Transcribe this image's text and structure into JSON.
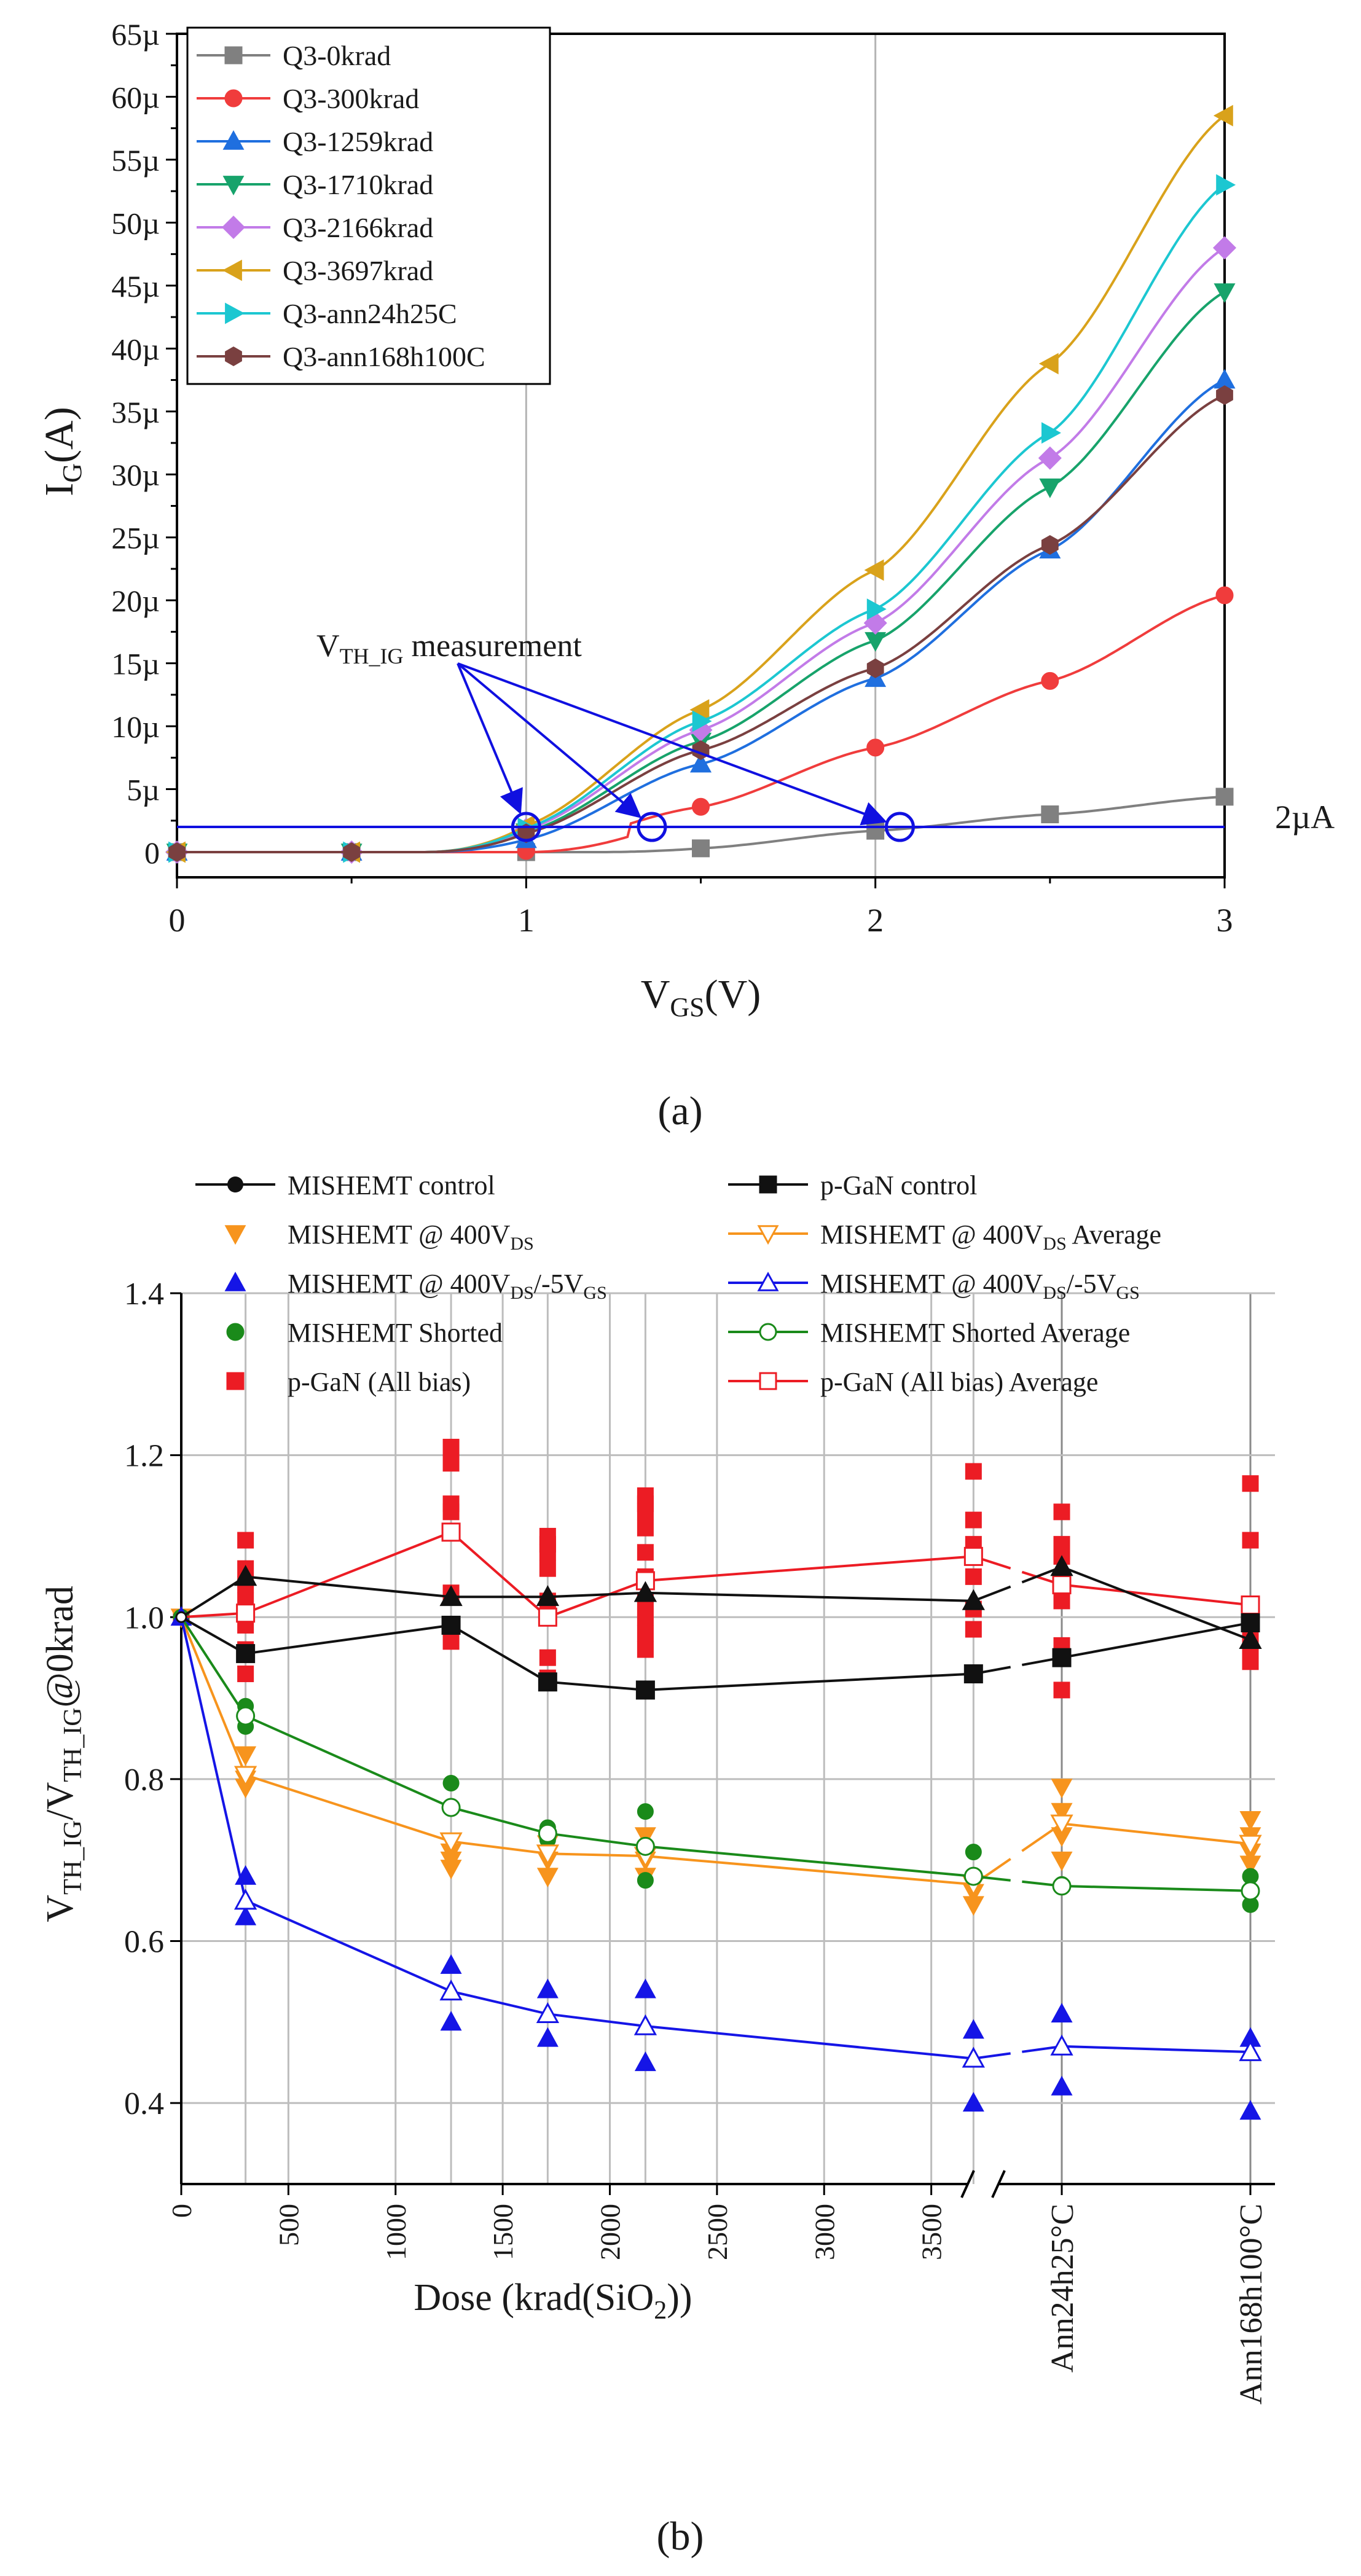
{
  "figure": {
    "panel_a_label": "(a)",
    "panel_b_label": "(b)"
  },
  "chart_data": [
    {
      "type": "line",
      "panel": "(a)",
      "title": "",
      "xlabel": "V",
      "xlabel_sub": "GS",
      "xlabel_suffix": "(V)",
      "ylabel": "I",
      "ylabel_sub": "G",
      "ylabel_suffix": "(A)",
      "xlim": [
        0,
        3
      ],
      "ylim": [
        -2,
        65
      ],
      "x_ticks": [
        0,
        1,
        2,
        3
      ],
      "y_ticks": [
        0,
        5,
        10,
        15,
        20,
        25,
        30,
        35,
        40,
        45,
        50,
        55,
        60,
        65
      ],
      "y_tick_labels": [
        "0",
        "5µ",
        "10µ",
        "15µ",
        "20µ",
        "25µ",
        "30µ",
        "35µ",
        "40µ",
        "45µ",
        "50µ",
        "55µ",
        "60µ",
        "65µ"
      ],
      "grid": "vertical",
      "legend_position": "top-left",
      "colors": [
        "#808080",
        "#f03c3c",
        "#1f6fdf",
        "#17a36b",
        "#c27be8",
        "#d9a21b",
        "#1cc7d1",
        "#7a4040"
      ],
      "marker_x": [
        0,
        0.5,
        1,
        1.5,
        2,
        2.5,
        3
      ],
      "series": [
        {
          "name": "Q3-0krad",
          "marker": "square",
          "values": [
            0,
            0,
            0,
            0.3,
            1.7,
            3.0,
            4.4
          ]
        },
        {
          "name": "Q3-300krad",
          "marker": "circle",
          "values": [
            0,
            0,
            0.1,
            3.6,
            8.3,
            13.6,
            20.4
          ]
        },
        {
          "name": "Q3-1259krad",
          "marker": "triangle-up",
          "values": [
            0,
            0,
            1.0,
            7.0,
            13.8,
            24.0,
            37.5
          ]
        },
        {
          "name": "Q3-1710krad",
          "marker": "triangle-down",
          "values": [
            0,
            0,
            1.6,
            8.8,
            16.8,
            29.0,
            44.5
          ]
        },
        {
          "name": "Q3-2166krad",
          "marker": "diamond",
          "values": [
            0,
            0,
            1.8,
            9.7,
            18.2,
            31.3,
            48.0
          ]
        },
        {
          "name": "Q3-3697krad",
          "marker": "triangle-left",
          "values": [
            0,
            0,
            2.1,
            11.3,
            22.4,
            38.8,
            58.5
          ]
        },
        {
          "name": "Q3-ann24h25C",
          "marker": "triangle-right",
          "values": [
            0,
            0,
            1.9,
            10.4,
            19.3,
            33.3,
            53.0
          ]
        },
        {
          "name": "Q3-ann168h100C",
          "marker": "hexagon",
          "values": [
            0,
            0,
            1.5,
            8.1,
            14.6,
            24.4,
            36.3
          ]
        }
      ],
      "threshold": {
        "value": 2,
        "label": "2µA"
      },
      "annotation": {
        "text_main": "V",
        "text_sub": "TH_IG",
        "text_suffix": " measurement",
        "targets_x": [
          1.0,
          1.36,
          2.07
        ]
      }
    },
    {
      "type": "scatter",
      "panel": "(b)",
      "xlabel": "Dose (krad(SiO",
      "xlabel_sub": "2",
      "xlabel_suffix": "))",
      "ylabel": "V",
      "ylabel_sub1": "TH_IG",
      "ylabel_mid": "/V",
      "ylabel_sub2": "TH_IG",
      "ylabel_suffix": "@0krad",
      "ylim": [
        0.3,
        1.4
      ],
      "y_ticks": [
        0.4,
        0.6,
        0.8,
        1.0,
        1.2,
        1.4
      ],
      "y_tick_labels": [
        "0.4",
        "0.6",
        "0.8",
        "1.0",
        "1.2",
        "1.4"
      ],
      "x_tick_values": [
        0,
        500,
        1000,
        1500,
        2000,
        2500,
        3000,
        3500
      ],
      "x_tick_labels": [
        "0",
        "500",
        "1000",
        "1500",
        "2000",
        "2500",
        "3000",
        "3500"
      ],
      "x_break_after": 3500,
      "x_categories_after_break": [
        "Ann24h25°C",
        "Ann168h100°C"
      ],
      "x_points": [
        0,
        300,
        1259,
        1710,
        2166,
        3697,
        "Ann24h25°C",
        "Ann168h100°C"
      ],
      "grid": "vertical",
      "legend_position": "top",
      "colors": {
        "black": "#111111",
        "orange": "#f7941d",
        "blue": "#1515e6",
        "green": "#1a8a1a",
        "red": "#ec1c24"
      },
      "legend": [
        {
          "label": "MISHEMT control",
          "style": "line-filled-triangle",
          "color": "#111111"
        },
        {
          "label": "p-GaN control",
          "style": "line-filled-square",
          "color": "#111111"
        },
        {
          "label": "MISHEMT @ 400V",
          "sub": "DS",
          "suffix": "",
          "style": "filled-triangle-down",
          "color": "#f7941d"
        },
        {
          "label": "MISHEMT @ 400V",
          "sub": "DS",
          "suffix": " Average",
          "style": "line-open-triangle-down",
          "color": "#f7941d"
        },
        {
          "label": "MISHEMT @ 400V",
          "sub": "DS",
          "suffix": "/-5V",
          "sub2": "GS",
          "style": "filled-triangle-up",
          "color": "#1515e6"
        },
        {
          "label": "MISHEMT @ 400V",
          "sub": "DS",
          "suffix": "/-5V",
          "sub2": "GS",
          "style": "line-open-triangle-up",
          "color": "#1515e6"
        },
        {
          "label": "MISHEMT Shorted",
          "style": "filled-circle",
          "color": "#1a8a1a"
        },
        {
          "label": "MISHEMT Shorted Average",
          "style": "line-open-circle",
          "color": "#1a8a1a"
        },
        {
          "label": "p-GaN (All bias)",
          "style": "filled-square",
          "color": "#ec1c24"
        },
        {
          "label": "p-GaN (All bias) Average",
          "style": "line-open-square",
          "color": "#ec1c24"
        }
      ],
      "series": [
        {
          "name": "MISHEMT control",
          "values": [
            1.0,
            1.05,
            1.025,
            1.025,
            1.03,
            1.02,
            1.062,
            0.972
          ]
        },
        {
          "name": "p-GaN control",
          "values": [
            1.0,
            0.955,
            0.99,
            0.92,
            0.91,
            0.93,
            0.95,
            0.993
          ]
        },
        {
          "name": "MISHEMT @ 400VDS",
          "points": [
            [
              0,
              1.0
            ],
            [
              300,
              0.83
            ],
            [
              300,
              0.8
            ],
            [
              300,
              0.79
            ],
            [
              1259,
              0.71
            ],
            [
              1259,
              0.7
            ],
            [
              1259,
              0.69
            ],
            [
              1710,
              0.72
            ],
            [
              1710,
              0.7
            ],
            [
              1710,
              0.68
            ],
            [
              2166,
              0.73
            ],
            [
              2166,
              0.7
            ],
            [
              2166,
              0.68
            ],
            [
              3697,
              0.67
            ],
            [
              3697,
              0.66
            ],
            [
              3697,
              0.645
            ],
            [
              "Ann24h25°C",
              0.79
            ],
            [
              "Ann24h25°C",
              0.76
            ],
            [
              "Ann24h25°C",
              0.73
            ],
            [
              "Ann24h25°C",
              0.7
            ],
            [
              "Ann168h100°C",
              0.75
            ],
            [
              "Ann168h100°C",
              0.73
            ],
            [
              "Ann168h100°C",
              0.71
            ],
            [
              "Ann168h100°C",
              0.695
            ]
          ]
        },
        {
          "name": "MISHEMT @ 400VDS Average",
          "values": [
            1.0,
            0.805,
            0.723,
            0.708,
            0.705,
            0.67,
            0.745,
            0.72
          ]
        },
        {
          "name": "MISHEMT @ 400VDS/-5VGS",
          "points": [
            [
              0,
              1.0
            ],
            [
              300,
              0.68
            ],
            [
              300,
              0.63
            ],
            [
              1259,
              0.57
            ],
            [
              1259,
              0.5
            ],
            [
              1710,
              0.54
            ],
            [
              1710,
              0.48
            ],
            [
              2166,
              0.54
            ],
            [
              2166,
              0.45
            ],
            [
              3697,
              0.49
            ],
            [
              3697,
              0.4
            ],
            [
              "Ann24h25°C",
              0.51
            ],
            [
              "Ann24h25°C",
              0.42
            ],
            [
              "Ann168h100°C",
              0.48
            ],
            [
              "Ann168h100°C",
              0.39
            ]
          ]
        },
        {
          "name": "MISHEMT @ 400VDS/-5VGS Average",
          "values": [
            1.0,
            0.65,
            0.538,
            0.51,
            0.495,
            0.455,
            0.47,
            0.463
          ]
        },
        {
          "name": "MISHEMT Shorted",
          "points": [
            [
              0,
              1.0
            ],
            [
              300,
              0.89
            ],
            [
              300,
              0.865
            ],
            [
              1259,
              0.795
            ],
            [
              1259,
              0.765
            ],
            [
              1710,
              0.74
            ],
            [
              1710,
              0.725
            ],
            [
              2166,
              0.76
            ],
            [
              2166,
              0.675
            ],
            [
              3697,
              0.71
            ],
            [
              3697,
              0.68
            ],
            [
              "Ann24h25°C",
              0.67
            ],
            [
              "Ann168h100°C",
              0.68
            ],
            [
              "Ann168h100°C",
              0.645
            ]
          ]
        },
        {
          "name": "MISHEMT Shorted Average",
          "values": [
            1.0,
            0.878,
            0.765,
            0.733,
            0.717,
            0.68,
            0.668,
            0.662
          ]
        },
        {
          "name": "p-GaN (All bias)",
          "points": [
            [
              0,
              1.0
            ],
            [
              300,
              1.095
            ],
            [
              300,
              1.06
            ],
            [
              300,
              1.04
            ],
            [
              300,
              1.02
            ],
            [
              300,
              0.99
            ],
            [
              300,
              0.96
            ],
            [
              300,
              0.93
            ],
            [
              1259,
              1.21
            ],
            [
              1259,
              1.19
            ],
            [
              1259,
              1.14
            ],
            [
              1259,
              1.13
            ],
            [
              1259,
              1.03
            ],
            [
              1259,
              0.99
            ],
            [
              1259,
              0.97
            ],
            [
              1710,
              1.1
            ],
            [
              1710,
              1.09
            ],
            [
              1710,
              1.08
            ],
            [
              1710,
              1.06
            ],
            [
              1710,
              1.02
            ],
            [
              1710,
              0.95
            ],
            [
              1710,
              0.925
            ],
            [
              2166,
              1.15
            ],
            [
              2166,
              1.14
            ],
            [
              2166,
              1.13
            ],
            [
              2166,
              1.11
            ],
            [
              2166,
              1.08
            ],
            [
              2166,
              1.05
            ],
            [
              2166,
              1.02
            ],
            [
              2166,
              1.0
            ],
            [
              2166,
              0.98
            ],
            [
              2166,
              0.96
            ],
            [
              3697,
              1.18
            ],
            [
              3697,
              1.12
            ],
            [
              3697,
              1.09
            ],
            [
              3697,
              1.05
            ],
            [
              3697,
              1.01
            ],
            [
              3697,
              0.985
            ],
            [
              "Ann24h25°C",
              1.13
            ],
            [
              "Ann24h25°C",
              1.09
            ],
            [
              "Ann24h25°C",
              1.075
            ],
            [
              "Ann24h25°C",
              1.04
            ],
            [
              "Ann24h25°C",
              1.02
            ],
            [
              "Ann24h25°C",
              0.965
            ],
            [
              "Ann24h25°C",
              0.91
            ],
            [
              "Ann168h100°C",
              1.165
            ],
            [
              "Ann168h100°C",
              1.095
            ],
            [
              "Ann168h100°C",
              0.985
            ],
            [
              "Ann168h100°C",
              0.965
            ],
            [
              "Ann168h100°C",
              0.945
            ]
          ]
        },
        {
          "name": "p-GaN (All bias) Average",
          "values": [
            1.0,
            1.005,
            1.105,
            1.0,
            1.045,
            1.075,
            1.04,
            1.015
          ]
        }
      ]
    }
  ]
}
